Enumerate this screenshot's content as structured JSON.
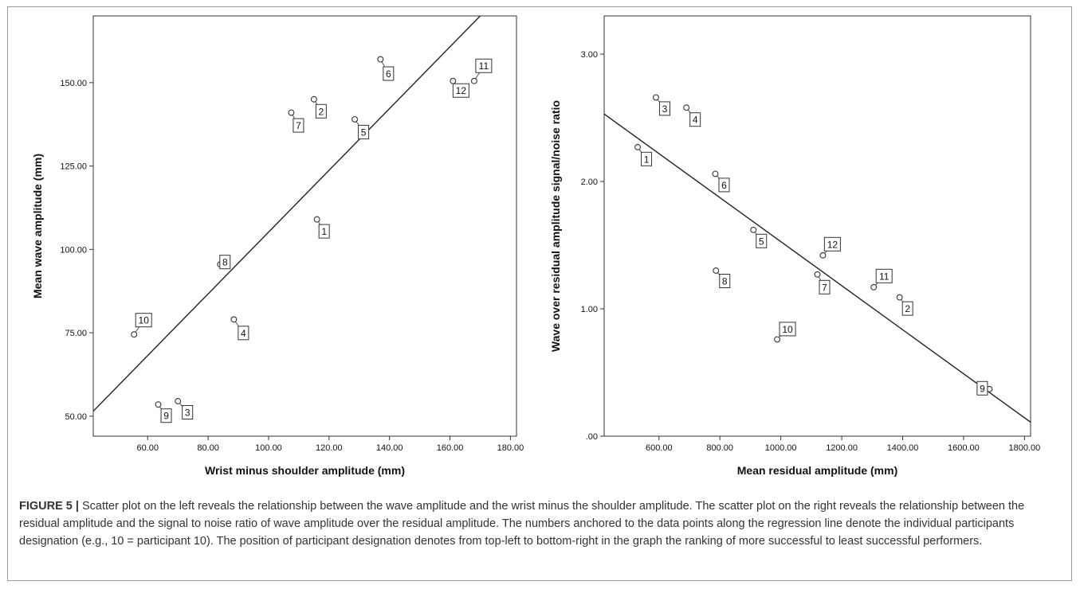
{
  "chart_data": [
    {
      "type": "scatter",
      "title": "",
      "xlabel": "Wrist minus shoulder amplitude (mm)",
      "ylabel": "Mean wave amplitude (mm)",
      "xlim": [
        42,
        182
      ],
      "ylim": [
        44,
        170
      ],
      "xticks": [
        60,
        80,
        100,
        120,
        140,
        160,
        180
      ],
      "yticks": [
        50,
        75,
        100,
        125,
        150
      ],
      "xtick_labels": [
        "60.00",
        "80.00",
        "100.00",
        "120.00",
        "140.00",
        "160.00",
        "180.00"
      ],
      "ytick_labels": [
        "50.00",
        "75.00",
        "100.00",
        "125.00",
        "150.00"
      ],
      "points": [
        {
          "label": "1",
          "x": 116,
          "y": 109
        },
        {
          "label": "2",
          "x": 115,
          "y": 145
        },
        {
          "label": "3",
          "x": 70,
          "y": 54.5
        },
        {
          "label": "4",
          "x": 88.5,
          "y": 79
        },
        {
          "label": "5",
          "x": 128.5,
          "y": 139
        },
        {
          "label": "6",
          "x": 137,
          "y": 157
        },
        {
          "label": "7",
          "x": 107.5,
          "y": 141
        },
        {
          "label": "8",
          "x": 84,
          "y": 95.5
        },
        {
          "label": "9",
          "x": 63.5,
          "y": 53.5
        },
        {
          "label": "10",
          "x": 55.5,
          "y": 74.5
        },
        {
          "label": "11",
          "x": 168,
          "y": 150.5
        },
        {
          "label": "12",
          "x": 161,
          "y": 150.5
        }
      ],
      "regression_line": {
        "x": [
          42,
          170
        ],
        "y": [
          51.5,
          170
        ]
      },
      "grid": false
    },
    {
      "type": "scatter",
      "title": "",
      "xlabel": "Mean residual amplitude (mm)",
      "ylabel": "Wave over residual amplitude signal/noise ratio",
      "xlim": [
        420,
        1820
      ],
      "ylim": [
        0,
        3.3
      ],
      "xticks": [
        600,
        800,
        1000,
        1200,
        1400,
        1600,
        1800
      ],
      "yticks": [
        0,
        1,
        2,
        3
      ],
      "xtick_labels": [
        "600.00",
        "800.00",
        "1000.00",
        "1200.00",
        "1400.00",
        "1600.00",
        "1800.00"
      ],
      "ytick_labels": [
        ".00",
        "1.00",
        "2.00",
        "3.00"
      ],
      "points": [
        {
          "label": "1",
          "x": 530,
          "y": 2.27
        },
        {
          "label": "2",
          "x": 1390,
          "y": 1.09
        },
        {
          "label": "3",
          "x": 590,
          "y": 2.66
        },
        {
          "label": "4",
          "x": 690,
          "y": 2.58
        },
        {
          "label": "5",
          "x": 910,
          "y": 1.62
        },
        {
          "label": "6",
          "x": 785,
          "y": 2.06
        },
        {
          "label": "7",
          "x": 1120,
          "y": 1.27
        },
        {
          "label": "8",
          "x": 787,
          "y": 1.3
        },
        {
          "label": "9",
          "x": 1685,
          "y": 0.37
        },
        {
          "label": "10",
          "x": 988,
          "y": 0.76
        },
        {
          "label": "11",
          "x": 1305,
          "y": 1.17
        },
        {
          "label": "12",
          "x": 1138,
          "y": 1.42
        }
      ],
      "regression_line": {
        "x": [
          420,
          1820
        ],
        "y": [
          2.53,
          0.11
        ]
      },
      "grid": false
    }
  ],
  "caption": {
    "label": "FIGURE 5 |",
    "text": " Scatter plot on the left reveals the relationship between the wave amplitude and the wrist minus the shoulder amplitude. The scatter plot on the right reveals the relationship between the residual amplitude and the signal to noise ratio of wave amplitude over the residual amplitude. The numbers anchored to the data points along the regression line denote the individual participants designation (e.g., 10 = participant 10). The position of participant designation denotes from top-left to bottom-right in the graph the ranking of more successful to least successful performers."
  }
}
